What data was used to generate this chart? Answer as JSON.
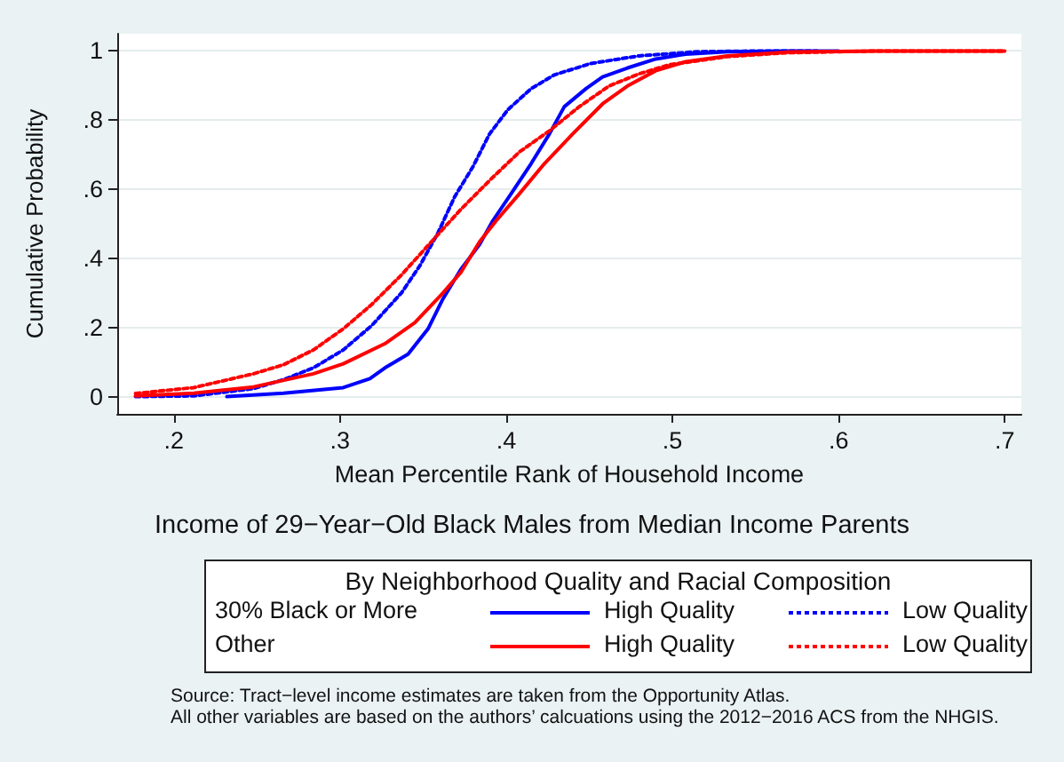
{
  "chart_data": {
    "type": "line",
    "title": "Income of 29−Year−Old Black Males from Median Income Parents",
    "xlabel": "Mean Percentile Rank of Household Income",
    "ylabel": "Cumulative Probability",
    "legend_title": "By Neighborhood Quality and Racial Composition",
    "annotations": [
      "30% Black or More",
      "Other",
      "Source: Tract−level income estimates are taken from the Opportunity Atlas.",
      "All other variables are based on the authors’ calcuations using the 2012−2016 ACS from the NHGIS."
    ],
    "xlim": [
      0.166,
      0.71
    ],
    "ylim": [
      -0.05,
      1.05
    ],
    "xticks": [
      {
        "value": 0.2,
        "label": ".2"
      },
      {
        "value": 0.3,
        "label": ".3"
      },
      {
        "value": 0.4,
        "label": ".4"
      },
      {
        "value": 0.5,
        "label": ".5"
      },
      {
        "value": 0.6,
        "label": ".6"
      },
      {
        "value": 0.7,
        "label": ".7"
      }
    ],
    "yticks": [
      0,
      {
        "value": 0.2,
        "label": ".2"
      },
      {
        "value": 0.4,
        "label": ".4"
      },
      {
        "value": 0.6,
        "label": ".6"
      },
      {
        "value": 0.8,
        "label": ".8"
      },
      1
    ],
    "grid": "y",
    "legend": "bottom",
    "marker": "none",
    "series": [
      {
        "name": "High Quality",
        "color": "#0000ff",
        "line_style": "solid",
        "x": [
          0.232,
          0.266,
          0.302,
          0.318,
          0.327,
          0.341,
          0.353,
          0.362,
          0.373,
          0.384,
          0.392,
          0.403,
          0.415,
          0.426,
          0.435,
          0.448,
          0.458,
          0.473,
          0.49,
          0.508,
          0.533,
          0.569,
          0.6
        ],
        "values": [
          0,
          0.01,
          0.026,
          0.052,
          0.083,
          0.123,
          0.196,
          0.283,
          0.37,
          0.44,
          0.509,
          0.587,
          0.674,
          0.76,
          0.839,
          0.891,
          0.925,
          0.951,
          0.977,
          0.991,
          0.998,
          1,
          1
        ]
      },
      {
        "name": "Low Quality",
        "color": "#0000ff",
        "line_style": "dotted",
        "x": [
          0.177,
          0.212,
          0.248,
          0.266,
          0.284,
          0.302,
          0.319,
          0.337,
          0.348,
          0.359,
          0.369,
          0.38,
          0.39,
          0.401,
          0.415,
          0.429,
          0.451,
          0.48,
          0.515,
          0.551,
          0.587
        ],
        "values": [
          0,
          0.002,
          0.023,
          0.049,
          0.083,
          0.135,
          0.205,
          0.3,
          0.378,
          0.474,
          0.578,
          0.665,
          0.76,
          0.83,
          0.891,
          0.931,
          0.964,
          0.986,
          0.998,
          1,
          1
        ]
      },
      {
        "name": "High Quality",
        "color": "#ff0000",
        "line_style": "solid",
        "x": [
          0.177,
          0.212,
          0.248,
          0.284,
          0.302,
          0.327,
          0.345,
          0.362,
          0.373,
          0.384,
          0.394,
          0.408,
          0.423,
          0.44,
          0.458,
          0.473,
          0.49,
          0.508,
          0.533,
          0.569,
          0.622,
          0.7
        ],
        "values": [
          0.002,
          0.01,
          0.028,
          0.066,
          0.095,
          0.153,
          0.214,
          0.3,
          0.361,
          0.448,
          0.509,
          0.587,
          0.674,
          0.76,
          0.847,
          0.899,
          0.943,
          0.969,
          0.986,
          0.997,
          1,
          1
        ]
      },
      {
        "name": "Low Quality",
        "color": "#ff0000",
        "line_style": "dotted",
        "x": [
          0.177,
          0.212,
          0.248,
          0.266,
          0.284,
          0.302,
          0.319,
          0.337,
          0.355,
          0.373,
          0.391,
          0.408,
          0.426,
          0.444,
          0.462,
          0.48,
          0.498,
          0.533,
          0.569,
          0.622,
          0.7
        ],
        "values": [
          0.009,
          0.026,
          0.066,
          0.092,
          0.135,
          0.196,
          0.266,
          0.352,
          0.448,
          0.543,
          0.63,
          0.708,
          0.769,
          0.839,
          0.899,
          0.934,
          0.96,
          0.984,
          0.995,
          1,
          1
        ]
      }
    ]
  }
}
